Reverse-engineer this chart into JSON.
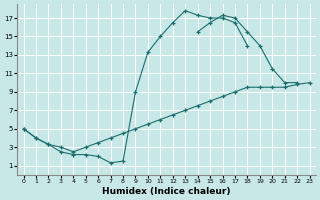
{
  "xlabel": "Humidex (Indice chaleur)",
  "bg_color": "#c8e8e8",
  "grid_color": "#ffffff",
  "line_color": "#1a6e6e",
  "xlim": [
    -0.5,
    23.5
  ],
  "ylim": [
    0,
    18.5
  ],
  "xticks": [
    0,
    1,
    2,
    3,
    4,
    5,
    6,
    7,
    8,
    9,
    10,
    11,
    12,
    13,
    14,
    15,
    16,
    17,
    18,
    19,
    20,
    21,
    22,
    23
  ],
  "yticks": [
    1,
    3,
    5,
    7,
    9,
    11,
    13,
    15,
    17
  ],
  "curves": [
    {
      "x": [
        0,
        1,
        2,
        3,
        4,
        5,
        6,
        7,
        8,
        9,
        10,
        11,
        12,
        13,
        14,
        15,
        16,
        17,
        18
      ],
      "y": [
        5.0,
        4.0,
        3.3,
        2.5,
        2.2,
        2.2,
        2.0,
        1.3,
        1.5,
        9.0,
        13.3,
        15.0,
        16.5,
        17.8,
        17.3,
        17.0,
        17.0,
        16.5,
        14.0
      ]
    },
    {
      "x": [
        14,
        15,
        16,
        17,
        18,
        19,
        20,
        21,
        22
      ],
      "y": [
        15.5,
        16.5,
        17.3,
        17.0,
        15.5,
        14.0,
        11.5,
        10.0,
        10.0
      ]
    },
    {
      "x": [
        0,
        1,
        2,
        3,
        4,
        5,
        6,
        7,
        8,
        9,
        10,
        11,
        12,
        13,
        14,
        15,
        16,
        17,
        18,
        19,
        20,
        21,
        22,
        23
      ],
      "y": [
        5.0,
        4.0,
        3.3,
        3.0,
        2.5,
        3.0,
        3.5,
        4.0,
        4.5,
        5.0,
        5.5,
        6.0,
        6.5,
        7.0,
        7.5,
        8.0,
        8.5,
        9.0,
        9.5,
        9.5,
        9.5,
        9.5,
        9.8,
        10.0
      ]
    }
  ]
}
